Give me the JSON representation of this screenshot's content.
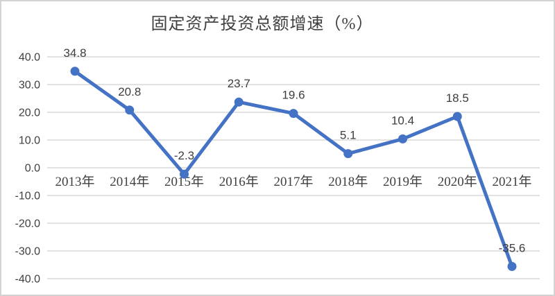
{
  "chart_data": {
    "type": "line",
    "title": "固定资产投资总额增速（%）",
    "categories": [
      "2013年",
      "2014年",
      "2015年",
      "2016年",
      "2017年",
      "2018年",
      "2019年",
      "2020年",
      "2021年"
    ],
    "values": [
      34.8,
      20.8,
      -2.3,
      23.7,
      19.6,
      5.1,
      10.4,
      18.5,
      -35.6
    ],
    "data_labels": [
      "34.8",
      "20.8",
      "-2.3",
      "23.7",
      "19.6",
      "5.1",
      "10.4",
      "18.5",
      "-35.6"
    ],
    "ylim": [
      -40,
      40
    ],
    "ytick_step": 10,
    "ytick_labels": [
      "40.0",
      "30.0",
      "20.0",
      "10.0",
      "0.0",
      "-10.0",
      "-20.0",
      "-30.0",
      "-40.0"
    ],
    "grid": true,
    "legend_position": "none",
    "colors": {
      "line": "#4472C4",
      "marker": "#4472C4",
      "grid": "#d8d8d8",
      "text": "#404040",
      "border": "#d2d2d2",
      "background": "#ffffff"
    }
  }
}
